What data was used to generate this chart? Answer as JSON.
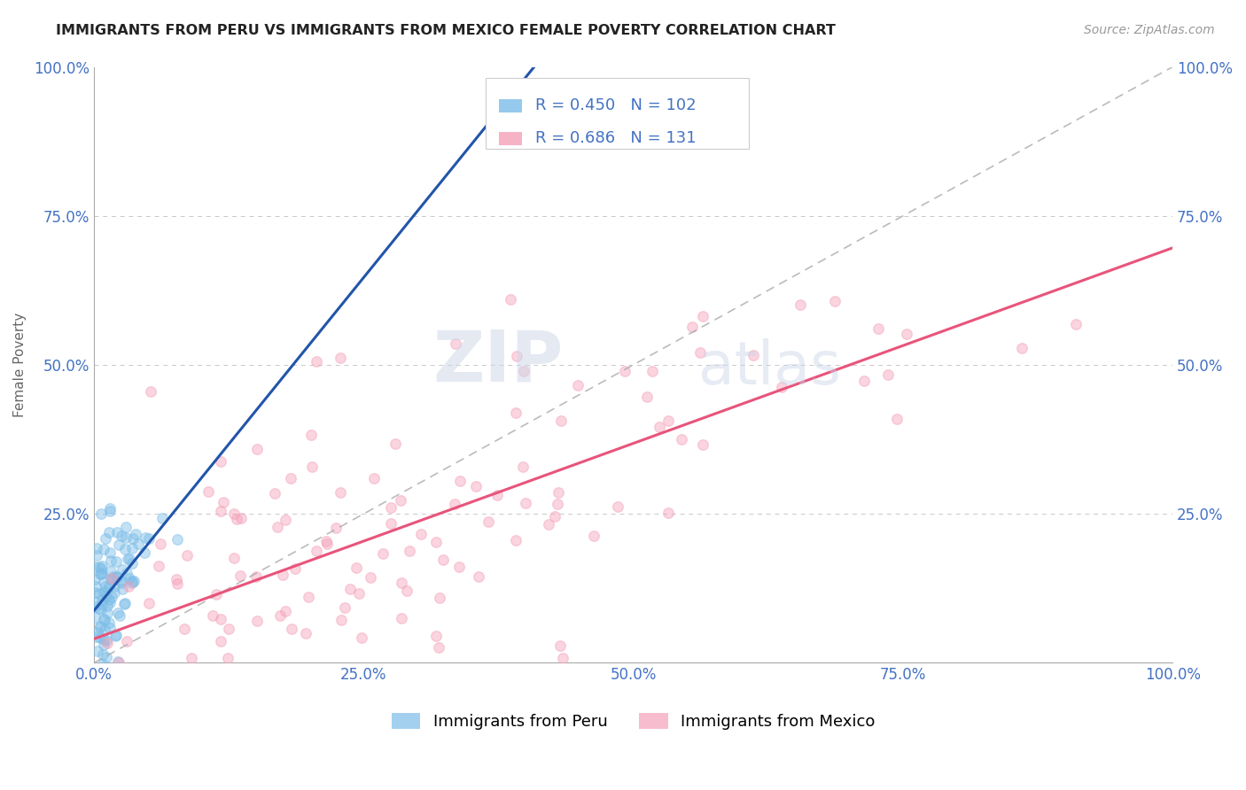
{
  "title": "IMMIGRANTS FROM PERU VS IMMIGRANTS FROM MEXICO FEMALE POVERTY CORRELATION CHART",
  "source": "Source: ZipAtlas.com",
  "ylabel": "Female Poverty",
  "xlim": [
    0,
    1
  ],
  "ylim": [
    0,
    1
  ],
  "xtick_labels": [
    "0.0%",
    "25.0%",
    "50.0%",
    "75.0%",
    "100.0%"
  ],
  "ytick_labels": [
    "",
    "25.0%",
    "50.0%",
    "75.0%",
    "100.0%"
  ],
  "peru_color": "#7bbde8",
  "mexico_color": "#f4a0b8",
  "peru_line_color": "#2255aa",
  "mexico_line_color": "#e8547a",
  "peru_R": 0.45,
  "peru_N": 102,
  "mexico_R": 0.686,
  "mexico_N": 131,
  "watermark_zip": "ZIP",
  "watermark_atlas": "atlas",
  "legend_label_peru": "Immigrants from Peru",
  "legend_label_mexico": "Immigrants from Mexico",
  "background_color": "#ffffff",
  "grid_color": "#c8c8c8",
  "title_color": "#222222",
  "label_color": "#4472c4",
  "axis_color": "#aaaaaa",
  "ref_line_color": "#aaaaaa"
}
